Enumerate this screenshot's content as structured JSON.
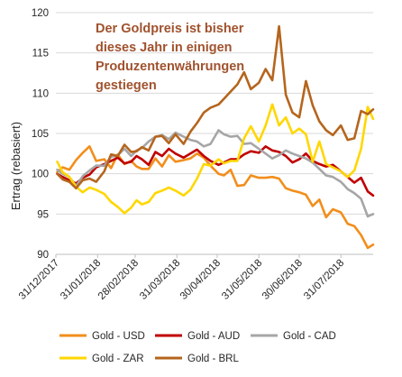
{
  "chart_data": {
    "type": "line",
    "title": "",
    "xlabel": "",
    "ylabel": "Ertrag (rebasiert)",
    "ylim": [
      90,
      120
    ],
    "yticks": [
      90,
      95,
      100,
      105,
      110,
      115,
      120
    ],
    "xlim": [
      "2017-12-31",
      "2018-08-24"
    ],
    "xticks": [
      "2017-12-31",
      "2018-01-31",
      "2018-02-28",
      "2018-03-31",
      "2018-04-30",
      "2018-05-31",
      "2018-06-30",
      "2018-07-31"
    ],
    "xtick_labels": [
      "31/12/2017",
      "31/01/2018",
      "28/02/2018",
      "31/03/2018",
      "30/04/2018",
      "31/05/2018",
      "30/06/2018",
      "31/07/2018"
    ],
    "grid": "horizontal",
    "legend_position": "bottom",
    "annotation": [
      "Der Goldpreis ist bisher",
      "dieses Jahr in einigen",
      "Produzentenwährungen",
      "gestiegen"
    ],
    "series": [
      {
        "name": "Gold - USD",
        "color": "#f28e1c",
        "x": [
          "2018-01-01",
          "2018-01-05",
          "2018-01-10",
          "2018-01-15",
          "2018-01-20",
          "2018-01-25",
          "2018-01-30",
          "2018-02-05",
          "2018-02-10",
          "2018-02-15",
          "2018-02-20",
          "2018-02-25",
          "2018-03-01",
          "2018-03-05",
          "2018-03-10",
          "2018-03-15",
          "2018-03-20",
          "2018-03-25",
          "2018-03-30",
          "2018-04-05",
          "2018-04-10",
          "2018-04-15",
          "2018-04-20",
          "2018-04-25",
          "2018-05-01",
          "2018-05-05",
          "2018-05-10",
          "2018-05-15",
          "2018-05-20",
          "2018-05-25",
          "2018-05-31",
          "2018-06-05",
          "2018-06-10",
          "2018-06-15",
          "2018-06-20",
          "2018-06-25",
          "2018-06-30",
          "2018-07-05",
          "2018-07-10",
          "2018-07-15",
          "2018-07-20",
          "2018-07-25",
          "2018-07-31",
          "2018-08-05",
          "2018-08-10",
          "2018-08-15",
          "2018-08-20",
          "2018-08-24"
        ],
        "y": [
          100.2,
          100.8,
          100.5,
          101.7,
          102.6,
          103.4,
          101.6,
          101.8,
          100.7,
          102.4,
          101.2,
          101.6,
          100.9,
          100.6,
          100.6,
          101.9,
          100.9,
          102.3,
          101.5,
          101.7,
          101.9,
          102.5,
          102.0,
          101.0,
          100.0,
          99.8,
          100.5,
          98.5,
          98.6,
          99.8,
          99.5,
          99.5,
          99.6,
          99.4,
          98.2,
          97.9,
          97.7,
          97.4,
          96.0,
          96.8,
          94.6,
          95.6,
          95.2,
          93.8,
          93.5,
          92.4,
          90.8,
          91.2
        ]
      },
      {
        "name": "Gold - AUD",
        "color": "#c00000",
        "x": [
          "2018-01-01",
          "2018-01-05",
          "2018-01-10",
          "2018-01-15",
          "2018-01-20",
          "2018-01-25",
          "2018-01-30",
          "2018-02-05",
          "2018-02-10",
          "2018-02-15",
          "2018-02-20",
          "2018-02-25",
          "2018-03-01",
          "2018-03-05",
          "2018-03-10",
          "2018-03-15",
          "2018-03-20",
          "2018-03-25",
          "2018-03-30",
          "2018-04-05",
          "2018-04-10",
          "2018-04-15",
          "2018-04-20",
          "2018-04-25",
          "2018-05-01",
          "2018-05-05",
          "2018-05-10",
          "2018-05-15",
          "2018-05-20",
          "2018-05-25",
          "2018-05-31",
          "2018-06-05",
          "2018-06-10",
          "2018-06-15",
          "2018-06-20",
          "2018-06-25",
          "2018-06-30",
          "2018-07-05",
          "2018-07-10",
          "2018-07-15",
          "2018-07-20",
          "2018-07-25",
          "2018-07-31",
          "2018-08-05",
          "2018-08-10",
          "2018-08-15",
          "2018-08-20",
          "2018-08-24"
        ],
        "y": [
          100.0,
          99.6,
          99.2,
          98.8,
          99.5,
          99.9,
          100.8,
          101.2,
          101.6,
          102.0,
          101.3,
          101.5,
          102.2,
          101.8,
          101.1,
          102.7,
          102.2,
          103.1,
          102.5,
          102.0,
          102.5,
          103.0,
          102.2,
          101.6,
          101.1,
          101.4,
          101.8,
          101.8,
          102.4,
          102.8,
          102.6,
          103.4,
          102.9,
          102.7,
          102.2,
          101.4,
          101.8,
          102.5,
          101.6,
          101.2,
          100.9,
          101.1,
          100.3,
          99.6,
          98.9,
          99.5,
          97.8,
          97.3
        ]
      },
      {
        "name": "Gold - CAD",
        "color": "#a6a6a6",
        "x": [
          "2018-01-01",
          "2018-01-05",
          "2018-01-10",
          "2018-01-15",
          "2018-01-20",
          "2018-01-25",
          "2018-01-30",
          "2018-02-05",
          "2018-02-10",
          "2018-02-15",
          "2018-02-20",
          "2018-02-25",
          "2018-03-01",
          "2018-03-05",
          "2018-03-10",
          "2018-03-15",
          "2018-03-20",
          "2018-03-25",
          "2018-03-30",
          "2018-04-05",
          "2018-04-10",
          "2018-04-15",
          "2018-04-20",
          "2018-04-25",
          "2018-05-01",
          "2018-05-05",
          "2018-05-10",
          "2018-05-15",
          "2018-05-20",
          "2018-05-25",
          "2018-05-31",
          "2018-06-05",
          "2018-06-10",
          "2018-06-15",
          "2018-06-20",
          "2018-06-25",
          "2018-06-30",
          "2018-07-05",
          "2018-07-10",
          "2018-07-15",
          "2018-07-20",
          "2018-07-25",
          "2018-07-31",
          "2018-08-05",
          "2018-08-10",
          "2018-08-15",
          "2018-08-20",
          "2018-08-24"
        ],
        "y": [
          100.5,
          100.0,
          99.6,
          98.5,
          99.7,
          100.4,
          101.0,
          101.0,
          102.1,
          102.3,
          103.1,
          102.2,
          102.9,
          103.2,
          104.0,
          104.6,
          104.8,
          104.3,
          105.1,
          104.6,
          104.2,
          104.0,
          103.4,
          103.7,
          105.4,
          104.9,
          104.6,
          104.7,
          103.7,
          103.8,
          103.1,
          102.5,
          101.9,
          102.3,
          102.9,
          102.5,
          102.2,
          101.9,
          101.4,
          100.6,
          99.8,
          99.6,
          99.0,
          98.1,
          97.6,
          96.9,
          94.7,
          95.0
        ]
      },
      {
        "name": "Gold - ZAR",
        "color": "#ffd700",
        "x": [
          "2018-01-01",
          "2018-01-05",
          "2018-01-10",
          "2018-01-15",
          "2018-01-20",
          "2018-01-25",
          "2018-01-30",
          "2018-02-05",
          "2018-02-10",
          "2018-02-15",
          "2018-02-20",
          "2018-02-25",
          "2018-03-01",
          "2018-03-05",
          "2018-03-10",
          "2018-03-15",
          "2018-03-20",
          "2018-03-25",
          "2018-03-30",
          "2018-04-05",
          "2018-04-10",
          "2018-04-15",
          "2018-04-20",
          "2018-04-25",
          "2018-05-01",
          "2018-05-05",
          "2018-05-10",
          "2018-05-15",
          "2018-05-20",
          "2018-05-25",
          "2018-05-31",
          "2018-06-05",
          "2018-06-10",
          "2018-06-15",
          "2018-06-20",
          "2018-06-25",
          "2018-06-30",
          "2018-07-05",
          "2018-07-10",
          "2018-07-15",
          "2018-07-20",
          "2018-07-25",
          "2018-07-31",
          "2018-08-05",
          "2018-08-10",
          "2018-08-15",
          "2018-08-20",
          "2018-08-24"
        ],
        "y": [
          101.5,
          100.2,
          99.6,
          98.4,
          97.7,
          98.3,
          98.0,
          97.5,
          96.5,
          95.9,
          95.1,
          95.8,
          96.7,
          96.2,
          96.5,
          97.6,
          97.9,
          98.3,
          97.9,
          97.3,
          98.0,
          99.4,
          101.2,
          101.0,
          101.8,
          101.3,
          101.6,
          101.6,
          104.4,
          105.9,
          104.0,
          106.0,
          108.6,
          106.0,
          107.0,
          105.0,
          105.6,
          104.9,
          101.5,
          104.0,
          101.2,
          100.8,
          100.3,
          99.6,
          100.4,
          103.1,
          108.3,
          106.8
        ]
      },
      {
        "name": "Gold - BRL",
        "color": "#b5651d",
        "x": [
          "2018-01-01",
          "2018-01-05",
          "2018-01-10",
          "2018-01-15",
          "2018-01-20",
          "2018-01-25",
          "2018-01-30",
          "2018-02-05",
          "2018-02-10",
          "2018-02-15",
          "2018-02-20",
          "2018-02-25",
          "2018-03-01",
          "2018-03-05",
          "2018-03-10",
          "2018-03-15",
          "2018-03-20",
          "2018-03-25",
          "2018-03-30",
          "2018-04-05",
          "2018-04-10",
          "2018-04-15",
          "2018-04-20",
          "2018-04-25",
          "2018-05-01",
          "2018-05-05",
          "2018-05-10",
          "2018-05-15",
          "2018-05-20",
          "2018-05-25",
          "2018-05-31",
          "2018-06-05",
          "2018-06-10",
          "2018-06-15",
          "2018-06-20",
          "2018-06-25",
          "2018-06-30",
          "2018-07-05",
          "2018-07-10",
          "2018-07-15",
          "2018-07-20",
          "2018-07-25",
          "2018-07-31",
          "2018-08-05",
          "2018-08-10",
          "2018-08-15",
          "2018-08-20",
          "2018-08-24"
        ],
        "y": [
          100.0,
          99.3,
          99.0,
          98.2,
          99.2,
          99.4,
          99.0,
          100.3,
          102.4,
          102.2,
          103.6,
          102.7,
          102.8,
          103.3,
          102.9,
          104.6,
          104.7,
          103.8,
          104.9,
          103.7,
          105.2,
          106.3,
          107.6,
          108.2,
          108.6,
          109.3,
          110.2,
          111.1,
          112.6,
          110.5,
          111.3,
          113.0,
          111.6,
          118.3,
          109.8,
          107.6,
          107.0,
          111.5,
          108.5,
          106.5,
          105.4,
          104.8,
          106.0,
          104.2,
          104.4,
          107.8,
          107.4,
          108.0
        ]
      }
    ]
  }
}
